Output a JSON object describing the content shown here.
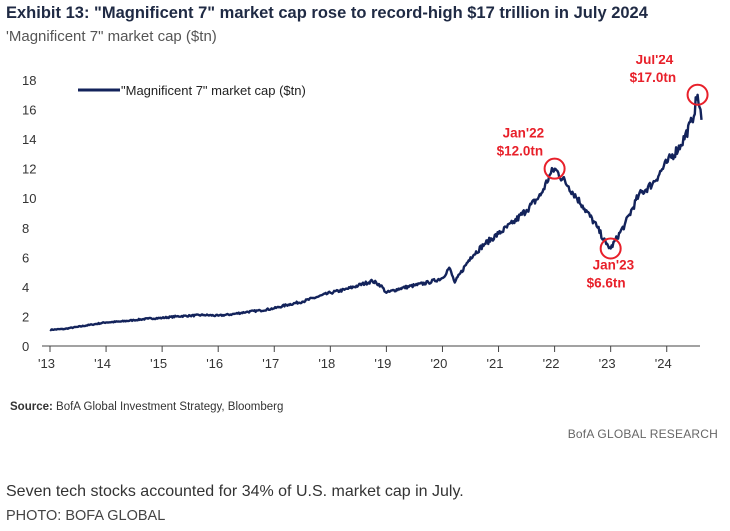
{
  "chart_data": {
    "type": "line",
    "title": "Exhibit 13: \"Magnificent 7\" market cap rose to record-high $17 trillion in July 2024",
    "subtitle": "'Magnificent 7\" market cap ($tn)",
    "ylim": [
      0,
      18
    ],
    "yticks": [
      "0",
      "2",
      "4",
      "6",
      "8",
      "10",
      "12",
      "14",
      "16",
      "18"
    ],
    "xlim": [
      2013,
      2024.95
    ],
    "xticks": [
      "'13",
      "'14",
      "'15",
      "'16",
      "'17",
      "'18",
      "'19",
      "'20",
      "'21",
      "'22",
      "'23",
      "'24"
    ],
    "series": [
      {
        "name": "\"Magnificent 7\" market cap ($tn)",
        "color": "#13235b",
        "x": [
          2013.0,
          2013.25,
          2013.5,
          2013.75,
          2014.0,
          2014.25,
          2014.5,
          2014.75,
          2015.0,
          2015.25,
          2015.5,
          2015.75,
          2016.0,
          2016.25,
          2016.5,
          2016.75,
          2017.0,
          2017.25,
          2017.5,
          2017.75,
          2018.0,
          2018.25,
          2018.5,
          2018.75,
          2018.9,
          2019.0,
          2019.25,
          2019.5,
          2019.75,
          2020.0,
          2020.12,
          2020.22,
          2020.5,
          2020.75,
          2021.0,
          2021.25,
          2021.5,
          2021.75,
          2021.92,
          2022.0,
          2022.25,
          2022.5,
          2022.75,
          2022.92,
          2023.0,
          2023.25,
          2023.5,
          2023.75,
          2024.0,
          2024.25,
          2024.45,
          2024.55,
          2024.62
        ],
        "values": [
          1.1,
          1.15,
          1.3,
          1.45,
          1.6,
          1.65,
          1.75,
          1.85,
          1.9,
          2.0,
          2.05,
          2.1,
          2.05,
          2.15,
          2.3,
          2.4,
          2.55,
          2.8,
          3.0,
          3.3,
          3.6,
          3.8,
          4.1,
          4.4,
          4.1,
          3.6,
          3.9,
          4.1,
          4.3,
          4.6,
          5.3,
          4.3,
          6.0,
          6.9,
          7.6,
          8.3,
          9.2,
          10.2,
          11.6,
          12.0,
          10.8,
          9.5,
          8.1,
          6.9,
          6.6,
          8.2,
          10.2,
          11.0,
          12.4,
          13.6,
          15.2,
          17.0,
          15.3
        ]
      }
    ],
    "annotations": [
      {
        "label_line1": "Jan'22",
        "label_line2": "$12.0tn",
        "x": 2022.0,
        "y": 12.0
      },
      {
        "label_line1": "Jan'23",
        "label_line2": "$6.6tn",
        "x": 2023.0,
        "y": 6.6
      },
      {
        "label_line1": "Jul'24",
        "label_line2": "$17.0tn",
        "x": 2024.55,
        "y": 17.0
      }
    ],
    "source_label": "Source:",
    "source_text": "BofA Global Investment Strategy, Bloomberg"
  },
  "brand": "BofA GLOBAL RESEARCH",
  "caption": "Seven tech stocks accounted for 34% of U.S. market cap in July.",
  "credit": "PHOTO: BOFA GLOBAL"
}
